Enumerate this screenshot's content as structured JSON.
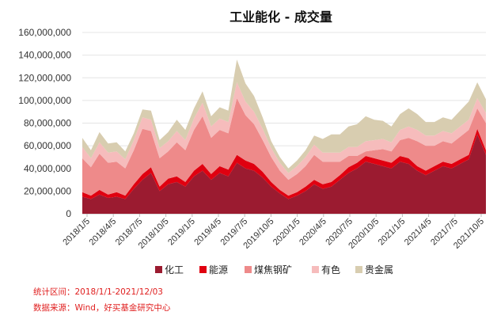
{
  "chart_data": {
    "type": "area",
    "stacked": true,
    "title": "工业能化 - 成交量",
    "x_ticks": [
      "2018/1/5",
      "2018/4/5",
      "2018/7/5",
      "2018/10/5",
      "2019/1/5",
      "2019/4/5",
      "2019/7/5",
      "2019/10/5",
      "2020/1/5",
      "2020/4/5",
      "2020/7/5",
      "2020/10/5",
      "2021/1/5",
      "2021/4/5",
      "2021/7/5",
      "2021/10/5"
    ],
    "y_ticks": [
      "0",
      "20,000,000",
      "40,000,000",
      "60,000,000",
      "80,000,000",
      "100,000,000",
      "120,000,000",
      "140,000,000",
      "160,000,000"
    ],
    "ylim": [
      0,
      160000000
    ],
    "legend_position": "bottom",
    "x": [
      "2018-01",
      "2018-02",
      "2018-03",
      "2018-04",
      "2018-05",
      "2018-06",
      "2018-07",
      "2018-08",
      "2018-09",
      "2018-10",
      "2018-11",
      "2018-12",
      "2019-01",
      "2019-02",
      "2019-03",
      "2019-04",
      "2019-05",
      "2019-06",
      "2019-07",
      "2019-08",
      "2019-09",
      "2019-10",
      "2019-11",
      "2019-12",
      "2020-01",
      "2020-02",
      "2020-03",
      "2020-04",
      "2020-05",
      "2020-06",
      "2020-07",
      "2020-08",
      "2020-09",
      "2020-10",
      "2020-11",
      "2020-12",
      "2021-01",
      "2021-02",
      "2021-03",
      "2021-04",
      "2021-05",
      "2021-06",
      "2021-07",
      "2021-08",
      "2021-09",
      "2021-10",
      "2021-11",
      "2021-12"
    ],
    "series": [
      {
        "name": "化工",
        "color": "#9b1b30",
        "values": [
          15,
          13,
          17,
          14,
          15,
          13,
          22,
          30,
          36,
          20,
          26,
          28,
          24,
          33,
          38,
          30,
          36,
          33,
          45,
          40,
          38,
          32,
          24,
          18,
          13,
          16,
          20,
          26,
          22,
          24,
          30,
          36,
          40,
          46,
          44,
          42,
          40,
          46,
          44,
          38,
          34,
          38,
          42,
          40,
          44,
          48,
          70,
          52
        ]
      },
      {
        "name": "能源",
        "color": "#e00010",
        "values": [
          4,
          3,
          4,
          3,
          4,
          3,
          4,
          5,
          5,
          4,
          5,
          5,
          4,
          5,
          6,
          5,
          6,
          6,
          7,
          7,
          6,
          5,
          4,
          3,
          3,
          3,
          4,
          4,
          4,
          4,
          4,
          5,
          5,
          5,
          5,
          5,
          5,
          5,
          5,
          4,
          4,
          4,
          4,
          4,
          4,
          4,
          5,
          4
        ]
      },
      {
        "name": "煤焦钢矿",
        "color": "#ee8a8a",
        "values": [
          30,
          25,
          32,
          28,
          27,
          24,
          30,
          40,
          32,
          25,
          24,
          30,
          28,
          36,
          42,
          32,
          32,
          32,
          50,
          40,
          35,
          28,
          22,
          17,
          14,
          16,
          18,
          22,
          20,
          18,
          12,
          10,
          6,
          4,
          7,
          10,
          10,
          14,
          18,
          22,
          22,
          18,
          18,
          18,
          20,
          22,
          18,
          24
        ]
      },
      {
        "name": "有色",
        "color": "#f6bcbc",
        "values": [
          10,
          8,
          10,
          9,
          9,
          8,
          9,
          10,
          10,
          9,
          9,
          10,
          9,
          10,
          12,
          10,
          10,
          10,
          14,
          12,
          11,
          10,
          8,
          7,
          6,
          7,
          8,
          9,
          8,
          8,
          8,
          8,
          8,
          9,
          9,
          9,
          8,
          9,
          10,
          10,
          9,
          9,
          9,
          9,
          9,
          9,
          9,
          9
        ]
      },
      {
        "name": "贵金属",
        "color": "#d8cdb0",
        "values": [
          8,
          7,
          9,
          8,
          8,
          7,
          6,
          7,
          8,
          7,
          8,
          10,
          9,
          9,
          10,
          9,
          10,
          10,
          20,
          16,
          14,
          10,
          6,
          5,
          4,
          5,
          6,
          8,
          12,
          16,
          16,
          18,
          20,
          22,
          18,
          16,
          14,
          14,
          16,
          14,
          12,
          12,
          12,
          12,
          14,
          16,
          14,
          12
        ]
      }
    ]
  },
  "footer": {
    "period": "统计区间：2018/1/1-2021/12/03",
    "source": "数据来源：Wind，好买基金研究中心"
  }
}
